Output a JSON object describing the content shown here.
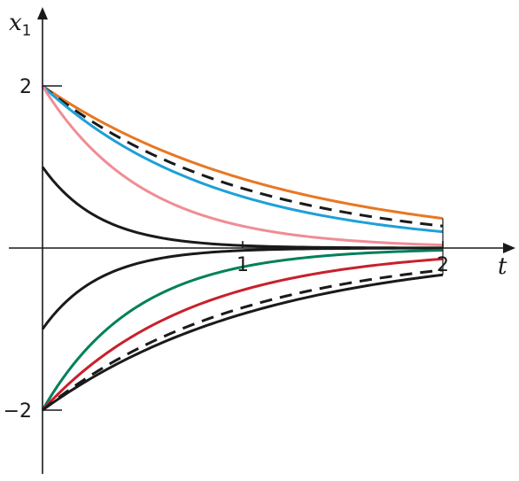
{
  "chart_data": {
    "type": "line",
    "xlabel": "t",
    "ylabel": {
      "main": "x",
      "sub": "1"
    },
    "xlim": [
      -0.17,
      2.36
    ],
    "ylim": [
      -2.8,
      2.8
    ],
    "xticks": [
      {
        "value": 1,
        "label": "1"
      },
      {
        "value": 2,
        "label": "2"
      }
    ],
    "yticks": [
      {
        "value": 2,
        "label": "2"
      },
      {
        "value": -2,
        "label": "−2"
      }
    ],
    "grid": false,
    "legend": "none",
    "series": [
      {
        "color": "#e87722",
        "dash": false,
        "x0": 2,
        "rate": 0.85
      },
      {
        "color": "#1a1a1a",
        "dash": true,
        "x0": 2,
        "rate": 1.0
      },
      {
        "color": "#1ea0d8",
        "dash": false,
        "x0": 2,
        "rate": 1.15
      },
      {
        "color": "#ef8d95",
        "dash": false,
        "x0": 2,
        "rate": 2.0
      },
      {
        "color": "#1a1a1a",
        "dash": false,
        "x0": 1,
        "rate": 3.5
      },
      {
        "color": "#1a1a1a",
        "dash": false,
        "x0": -1,
        "rate": 3.5
      },
      {
        "color": "#00805a",
        "dash": false,
        "x0": -2,
        "rate": 2.15
      },
      {
        "color": "#c8202b",
        "dash": false,
        "x0": -2,
        "rate": 1.35
      },
      {
        "color": "#1a1a1a",
        "dash": true,
        "x0": -2,
        "rate": 1.0
      },
      {
        "color": "#1a1a1a",
        "dash": false,
        "x0": -2,
        "rate": 0.9
      }
    ]
  }
}
